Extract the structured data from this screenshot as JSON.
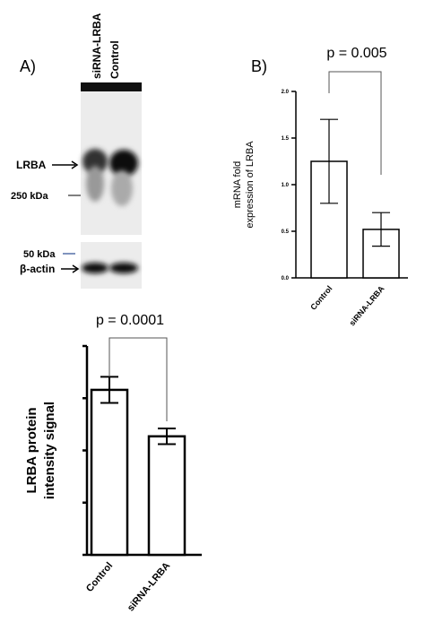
{
  "panel_labels": [
    "A)",
    "B)"
  ],
  "blot": {
    "lanes": [
      "siRNA-LRBA",
      "Control"
    ],
    "labels": [
      "LRBA",
      "250 kDa",
      "50 kDa",
      "β-actin"
    ]
  },
  "chart_data": [
    {
      "type": "bar",
      "annotation": "p = 0.005",
      "y_label": [
        "mRNA fold",
        "expression of LRBA"
      ],
      "categories": [
        "Control",
        "siRNA-LRBA"
      ],
      "values": [
        1.25,
        0.52
      ],
      "errors": [
        0.45,
        0.18
      ],
      "color": "#ffffff",
      "ylim": [
        0,
        2
      ],
      "yticks": [
        {
          "value": 0,
          "label": "0.0"
        },
        {
          "value": 0.5,
          "label": "0.5"
        },
        {
          "value": 1,
          "label": "1.0"
        },
        {
          "value": 1.5,
          "label": "1.5"
        },
        {
          "value": 2,
          "label": "2.0"
        }
      ]
    },
    {
      "type": "bar",
      "annotation": "p = 0.0001",
      "y_label": [
        "LRBA protein",
        "intensity signal"
      ],
      "categories": [
        "Control",
        "siRNA-LRBA"
      ],
      "values": [
        3.16,
        2.27
      ],
      "errors": [
        0.25,
        0.15
      ],
      "color": "#ffffff",
      "ylim": [
        0,
        4
      ],
      "yticks": [
        0,
        1,
        2,
        3,
        4
      ],
      "tick_labels": false
    }
  ]
}
